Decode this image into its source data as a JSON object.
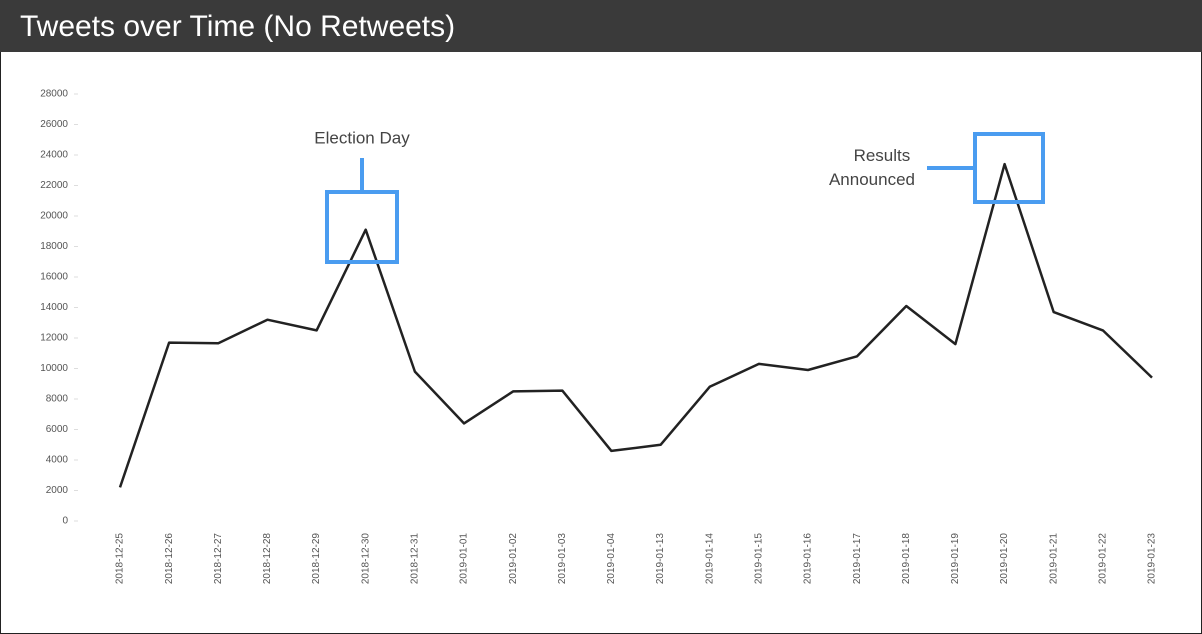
{
  "chart_data": {
    "type": "line",
    "title": "Tweets over Time (No Retweets)",
    "categories": [
      "2018-12-25",
      "2018-12-26",
      "2018-12-27",
      "2018-12-28",
      "2018-12-29",
      "2018-12-30",
      "2018-12-31",
      "2019-01-01",
      "2019-01-02",
      "2019-01-03",
      "2019-01-04",
      "2019-01-13",
      "2019-01-14",
      "2019-01-15",
      "2019-01-16",
      "2019-01-17",
      "2019-01-18",
      "2019-01-19",
      "2019-01-20",
      "2019-01-21",
      "2019-01-22",
      "2019-01-23"
    ],
    "values": [
      2200,
      11700,
      11650,
      13200,
      12500,
      19100,
      9800,
      6400,
      8500,
      8550,
      4600,
      5000,
      8800,
      10300,
      9900,
      10800,
      14100,
      11600,
      23400,
      13700,
      12500,
      9400
    ],
    "color": "#222222",
    "ylim": [
      0,
      28000
    ],
    "yticks": [
      0,
      2000,
      4000,
      6000,
      8000,
      10000,
      12000,
      14000,
      16000,
      18000,
      20000,
      22000,
      24000,
      26000,
      28000
    ],
    "grid": false,
    "annotations": [
      {
        "lines": [
          "Election Day"
        ]
      },
      {
        "lines": [
          "Results",
          "Announced"
        ]
      }
    ]
  }
}
